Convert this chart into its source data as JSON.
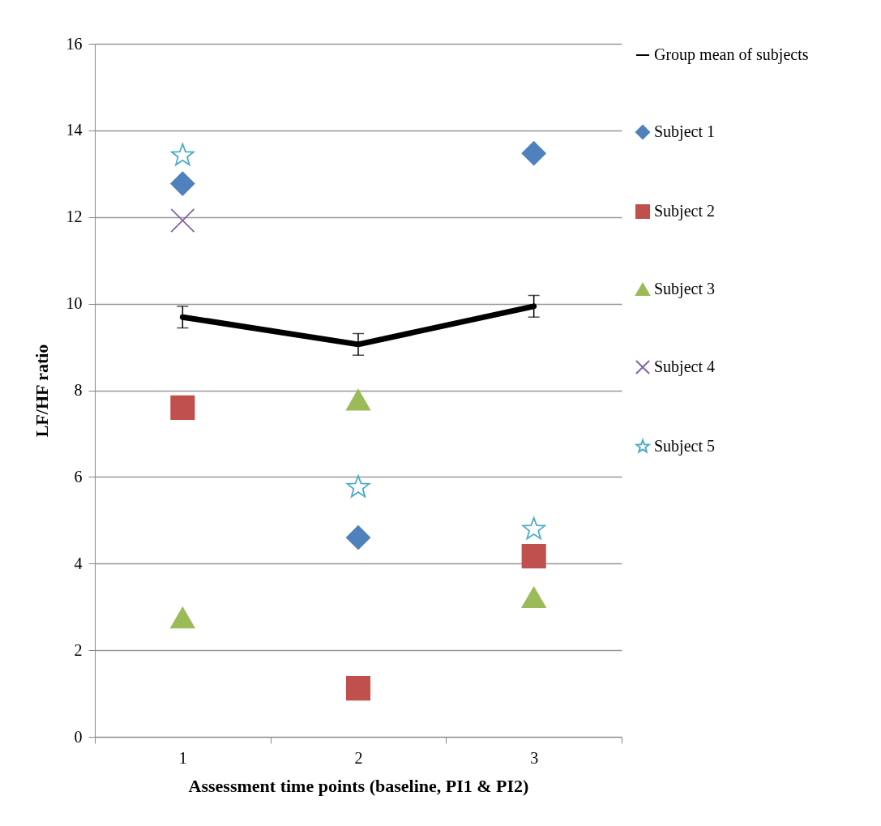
{
  "chart_data": {
    "type": "scatter",
    "xlabel": "Assessment time points (baseline, PI1 & PI2)",
    "ylabel": "LF/HF ratio",
    "categories": [
      "1",
      "2",
      "3"
    ],
    "ylim": [
      0,
      16
    ],
    "yticks": [
      0,
      2,
      4,
      6,
      8,
      10,
      12,
      14,
      16
    ],
    "grid": "y",
    "legend": "right",
    "series": [
      {
        "name": "Group mean of subjects",
        "type": "line",
        "color": "#000000",
        "marker": "none",
        "values": [
          9.69,
          9.06,
          9.94
        ],
        "errors": [
          0.25,
          0.25,
          0.25
        ]
      },
      {
        "name": "Subject 1",
        "color": "#4f81bd",
        "marker": "diamond",
        "values": [
          12.77,
          4.6,
          13.47
        ]
      },
      {
        "name": "Subject 2",
        "color": "#c0504d",
        "marker": "square",
        "values": [
          7.6,
          1.12,
          4.17
        ]
      },
      {
        "name": "Subject 3",
        "color": "#9bbb59",
        "marker": "triangle",
        "values": [
          2.75,
          7.78,
          3.22
        ]
      },
      {
        "name": "Subject 4",
        "color": "#8064a2",
        "marker": "cross",
        "values": [
          11.92,
          null,
          null
        ]
      },
      {
        "name": "Subject 5",
        "color": "#4bacc6",
        "marker": "star",
        "values": [
          13.42,
          5.76,
          4.79
        ]
      }
    ]
  }
}
